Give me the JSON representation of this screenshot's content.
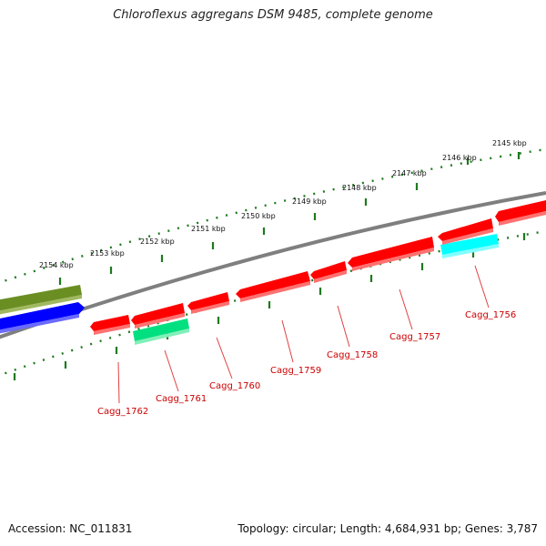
{
  "title": "Chloroflexus aggregans DSM 9485, complete genome",
  "footer": {
    "accession": "Accession: NC_011831",
    "summary": "Topology: circular; Length: 4,684,931 bp; Genes: 3,787"
  },
  "colors": {
    "backbone": "#7f7f7f",
    "tick": "#1e7a1e",
    "gene_red": "#ff0000",
    "gene_green": "#00e080",
    "gene_cyan": "#00ffff",
    "gene_blue": "#0000ff",
    "gene_olive": "#6b8e23",
    "label_red": "#cc0000"
  },
  "scale_labels": [
    "2145 kbp",
    "2146 kbp",
    "2147 kbp",
    "2148 kbp",
    "2149 kbp",
    "2150 kbp",
    "2151 kbp",
    "2152 kbp",
    "2153 kbp",
    "2154 kbp"
  ],
  "genes": [
    {
      "label": "Cagg_1756",
      "color": "gene_cyan"
    },
    {
      "label": "Cagg_1757",
      "color": "gene_red"
    },
    {
      "label": "Cagg_1758",
      "color": "gene_red"
    },
    {
      "label": "Cagg_1759",
      "color": "gene_red"
    },
    {
      "label": "Cagg_1760",
      "color": "gene_red"
    },
    {
      "label": "Cagg_1761",
      "color": "gene_green"
    },
    {
      "label": "Cagg_1762",
      "color": "gene_red"
    }
  ]
}
